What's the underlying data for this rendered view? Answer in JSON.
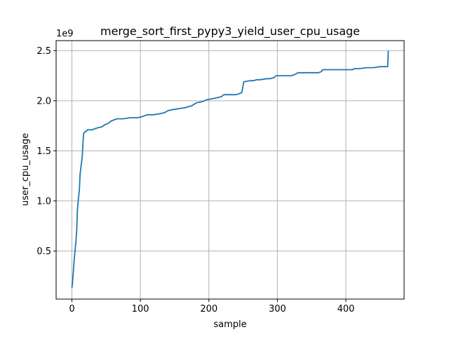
{
  "chart_data": {
    "type": "line",
    "title": "merge_sort_first_pypy3_yield_user_cpu_usage",
    "xlabel": "sample",
    "ylabel": "user_cpu_usage",
    "offset_label": "1e9",
    "xlim": [
      -23,
      485
    ],
    "ylim": [
      0.02,
      2.6
    ],
    "xticks": [
      0,
      100,
      200,
      300,
      400
    ],
    "xtick_labels": [
      "0",
      "100",
      "200",
      "300",
      "400"
    ],
    "yticks": [
      0.5,
      1.0,
      1.5,
      2.0,
      2.5
    ],
    "ytick_labels": [
      "0.5",
      "1.0",
      "1.5",
      "2.0",
      "2.5"
    ],
    "grid": true,
    "legend": "none",
    "series_color": "#1f77b4",
    "series": [
      {
        "x": [
          0,
          1,
          2,
          3,
          4,
          5,
          6,
          7,
          8,
          9,
          10,
          11,
          12,
          13,
          14,
          15,
          16,
          17,
          18,
          19,
          20,
          21,
          22,
          23,
          25,
          28,
          30,
          33,
          38,
          44,
          48,
          52,
          58,
          62,
          66,
          70,
          75,
          85,
          95,
          102,
          106,
          110,
          120,
          128,
          135,
          140,
          146,
          155,
          165,
          175,
          182,
          190,
          197,
          205,
          212,
          218,
          222,
          240,
          248,
          251,
          252,
          260,
          265,
          270,
          275,
          285,
          290,
          295,
          298,
          320,
          325,
          330,
          340,
          350,
          360,
          364,
          366,
          370,
          380,
          390,
          400,
          410,
          412,
          420,
          430,
          440,
          450,
          461,
          462
        ],
        "y": [
          0.13,
          0.19,
          0.28,
          0.38,
          0.46,
          0.53,
          0.6,
          0.7,
          0.9,
          0.98,
          1.05,
          1.12,
          1.27,
          1.32,
          1.38,
          1.43,
          1.55,
          1.67,
          1.68,
          1.69,
          1.69,
          1.7,
          1.7,
          1.71,
          1.71,
          1.71,
          1.71,
          1.72,
          1.73,
          1.74,
          1.76,
          1.77,
          1.8,
          1.81,
          1.82,
          1.82,
          1.82,
          1.83,
          1.83,
          1.84,
          1.85,
          1.86,
          1.86,
          1.87,
          1.88,
          1.9,
          1.91,
          1.92,
          1.93,
          1.95,
          1.98,
          1.99,
          2.01,
          2.02,
          2.03,
          2.04,
          2.06,
          2.06,
          2.08,
          2.19,
          2.19,
          2.2,
          2.2,
          2.21,
          2.21,
          2.22,
          2.22,
          2.23,
          2.25,
          2.25,
          2.26,
          2.28,
          2.28,
          2.28,
          2.28,
          2.29,
          2.31,
          2.31,
          2.31,
          2.31,
          2.31,
          2.31,
          2.32,
          2.32,
          2.33,
          2.33,
          2.34,
          2.34,
          2.5
        ]
      }
    ]
  }
}
